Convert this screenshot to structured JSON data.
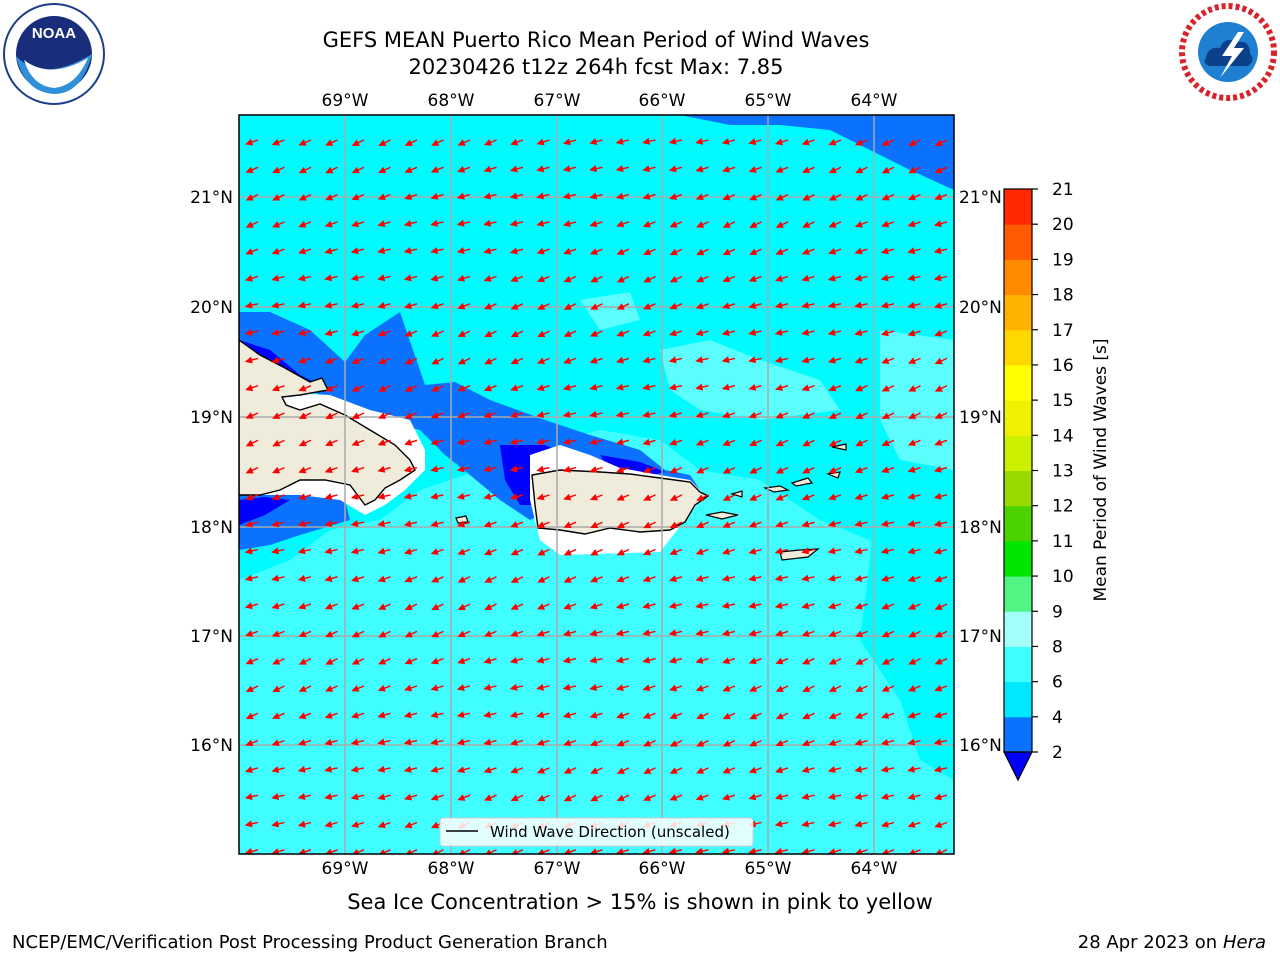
{
  "title_line1": "GEFS MEAN Puerto Rico Mean Period of Wind Waves",
  "title_line2": "20230426 t12z 264h fcst   Max: 7.85",
  "subtitle": "Sea Ice Concentration > 15% is shown in pink to yellow",
  "footer_left": "NCEP/EMC/Verification Post Processing Product Generation Branch",
  "footer_date": "28 Apr 2023 on ",
  "footer_host": "Hera",
  "legend_label": "Wind Wave Direction (unscaled)",
  "colorbar_label": "Mean Period of Wind Waves [s]",
  "lon_labels": [
    "69°W",
    "68°W",
    "67°W",
    "66°W",
    "65°W",
    "64°W"
  ],
  "lat_labels": [
    "21°N",
    "20°N",
    "19°N",
    "18°N",
    "17°N",
    "16°N"
  ],
  "colorbar": {
    "ticks": [
      "2",
      "4",
      "6",
      "8",
      "9",
      "10",
      "11",
      "12",
      "13",
      "14",
      "15",
      "16",
      "17",
      "18",
      "19",
      "20",
      "21"
    ],
    "colors": [
      "#0a72ff",
      "#00e8ff",
      "#40fdff",
      "#a2fffa",
      "#50f584",
      "#00e400",
      "#4cd200",
      "#98da00",
      "#ccf000",
      "#f0f000",
      "#ffff00",
      "#ffd800",
      "#ffb300",
      "#ff8a00",
      "#ff5a00",
      "#ff2a00",
      "#ff0000"
    ],
    "underflow_color": "#0000ff"
  },
  "colors": {
    "ocean_base": "#40fdff",
    "ocean_cyan": "#00fbff",
    "ocean_light": "#5cfdfd",
    "band_blue": "#0a72ff",
    "deep_blue": "#0000ff",
    "land": "#efecdc",
    "arrow": "#ff0000",
    "grid": "#aaaaaa"
  },
  "map": {
    "lon_range": [
      -70.0,
      -63.25
    ],
    "lat_range": [
      15.0,
      21.75
    ],
    "wind_wave_direction": "ENE to WSW (arrows point west-southwest)",
    "max_period_s": 7.85
  }
}
